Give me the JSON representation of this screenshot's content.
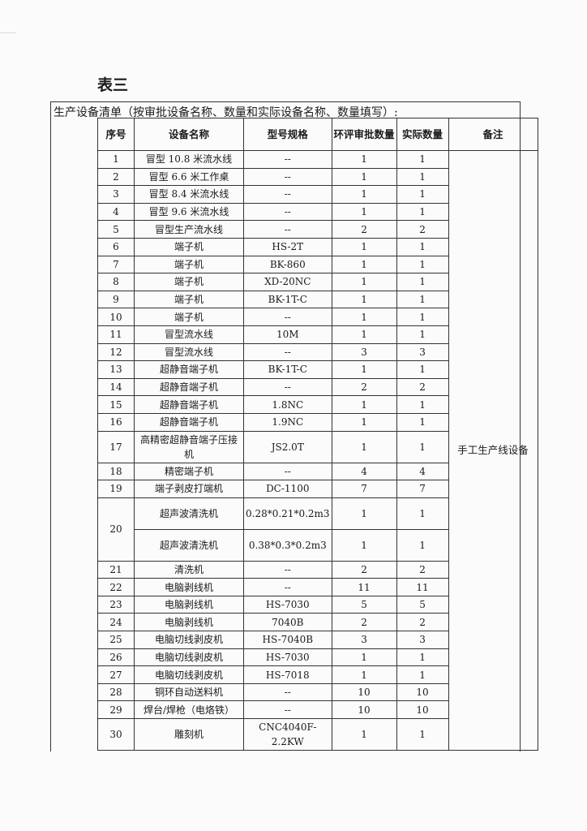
{
  "title": "表三",
  "caption": "生产设备清单（按审批设备名称、数量和实际设备名称、数量填写）:",
  "headers": {
    "seq": "序号",
    "name": "设备名称",
    "model": "型号规格",
    "approved": "环评审批数量",
    "actual": "实际数量",
    "remark": "备注"
  },
  "remark": "手工生产线设备",
  "rows": [
    {
      "seq": "1",
      "name": "冒型 10.8 米流水线",
      "model": "--",
      "approved": "1",
      "actual": "1"
    },
    {
      "seq": "2",
      "name": "冒型 6.6 米工作桌",
      "model": "--",
      "approved": "1",
      "actual": "1"
    },
    {
      "seq": "3",
      "name": "冒型 8.4 米流水线",
      "model": "--",
      "approved": "1",
      "actual": "1"
    },
    {
      "seq": "4",
      "name": "冒型 9.6 米流水线",
      "model": "--",
      "approved": "1",
      "actual": "1"
    },
    {
      "seq": "5",
      "name": "冒型生产流水线",
      "model": "--",
      "approved": "2",
      "actual": "2"
    },
    {
      "seq": "6",
      "name": "端子机",
      "model": "HS-2T",
      "approved": "1",
      "actual": "1"
    },
    {
      "seq": "7",
      "name": "端子机",
      "model": "BK-860",
      "approved": "1",
      "actual": "1"
    },
    {
      "seq": "8",
      "name": "端子机",
      "model": "XD-20NC",
      "approved": "1",
      "actual": "1"
    },
    {
      "seq": "9",
      "name": "端子机",
      "model": "BK-1T-C",
      "approved": "1",
      "actual": "1"
    },
    {
      "seq": "10",
      "name": "端子机",
      "model": "--",
      "approved": "1",
      "actual": "1"
    },
    {
      "seq": "11",
      "name": "冒型流水线",
      "model": "10M",
      "approved": "1",
      "actual": "1"
    },
    {
      "seq": "12",
      "name": "冒型流水线",
      "model": "--",
      "approved": "3",
      "actual": "3"
    },
    {
      "seq": "13",
      "name": "超静音端子机",
      "model": "BK-1T-C",
      "approved": "1",
      "actual": "1"
    },
    {
      "seq": "14",
      "name": "超静音端子机",
      "model": "--",
      "approved": "2",
      "actual": "2"
    },
    {
      "seq": "15",
      "name": "超静音端子机",
      "model": "1.8NC",
      "approved": "1",
      "actual": "1"
    },
    {
      "seq": "16",
      "name": "超静音端子机",
      "model": "1.9NC",
      "approved": "1",
      "actual": "1"
    },
    {
      "seq": "17",
      "name": "高精密超静音端子压接机",
      "model": "JS2.0T",
      "approved": "1",
      "actual": "1"
    },
    {
      "seq": "18",
      "name": "精密端子机",
      "model": "--",
      "approved": "4",
      "actual": "4"
    },
    {
      "seq": "19",
      "name": "端子剥皮打端机",
      "model": "DC-1100",
      "approved": "7",
      "actual": "7"
    },
    {
      "seq": "20",
      "name": "超声波清洗机",
      "model": "0.28*0.21*0.2m3",
      "approved": "1",
      "actual": "1"
    },
    {
      "seq": "",
      "name": "超声波清洗机",
      "model": "0.38*0.3*0.2m3",
      "approved": "1",
      "actual": "1"
    },
    {
      "seq": "21",
      "name": "清洗机",
      "model": "--",
      "approved": "2",
      "actual": "2"
    },
    {
      "seq": "22",
      "name": "电脑剥线机",
      "model": "--",
      "approved": "11",
      "actual": "11"
    },
    {
      "seq": "23",
      "name": "电脑剥线机",
      "model": "HS-7030",
      "approved": "5",
      "actual": "5"
    },
    {
      "seq": "24",
      "name": "电脑剥线机",
      "model": "7040B",
      "approved": "2",
      "actual": "2"
    },
    {
      "seq": "25",
      "name": "电脑切线剥皮机",
      "model": "HS-7040B",
      "approved": "3",
      "actual": "3"
    },
    {
      "seq": "26",
      "name": "电脑切线剥皮机",
      "model": "HS-7030",
      "approved": "1",
      "actual": "1"
    },
    {
      "seq": "27",
      "name": "电脑切线剥皮机",
      "model": "HS-7018",
      "approved": "1",
      "actual": "1"
    },
    {
      "seq": "28",
      "name": "铜环自动送料机",
      "model": "--",
      "approved": "10",
      "actual": "10"
    },
    {
      "seq": "29",
      "name": "焊台/焊枪（电烙铁）",
      "model": "--",
      "approved": "10",
      "actual": "10"
    },
    {
      "seq": "30",
      "name": "雕刻机",
      "model": "CNC4040F-2.2KW",
      "approved": "1",
      "actual": "1"
    }
  ]
}
